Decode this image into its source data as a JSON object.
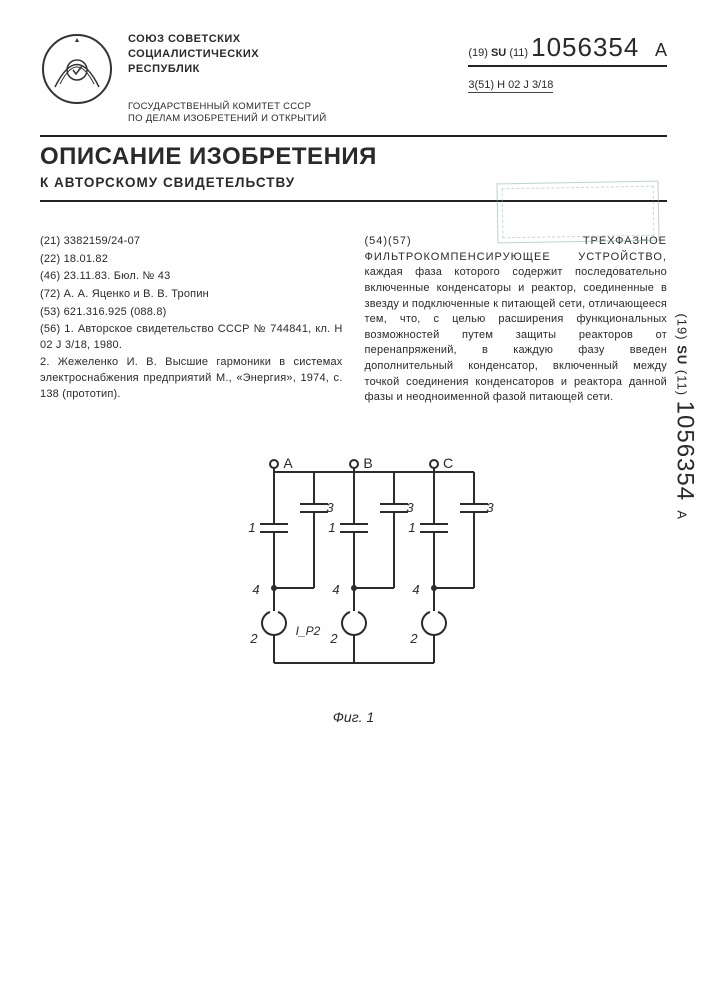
{
  "header": {
    "issuer_line1": "СОЮЗ СОВЕТСКИХ",
    "issuer_line2": "СОЦИАЛИСТИЧЕСКИХ",
    "issuer_line3": "РЕСПУБЛИК",
    "committee_line1": "ГОСУДАРСТВЕННЫЙ КОМИТЕТ СССР",
    "committee_line2": "ПО ДЕЛАМ ИЗОБРЕТЕНИЙ И ОТКРЫТИЙ",
    "country_prefix": "(19)",
    "country": "SU",
    "num_prefix": "(11)",
    "pub_number": "1056354",
    "kind": "A",
    "ipc_prefix": "3(51)",
    "ipc": "H 02 J 3/18"
  },
  "titles": {
    "main": "ОПИСАНИЕ ИЗОБРЕТЕНИЯ",
    "sub": "К АВТОРСКОМУ СВИДЕТЕЛЬСТВУ"
  },
  "left_col": {
    "l1": "(21) 3382159/24-07",
    "l2": "(22) 18.01.82",
    "l3": "(46) 23.11.83. Бюл. № 43",
    "l4": "(72) А. А. Яценко и В. В. Тропин",
    "l5": "(53) 621.316.925 (088.8)",
    "l6": "(56) 1. Авторское свидетельство СССР № 744841, кл. H 02 J 3/18, 1980.",
    "l7": "2. Жежеленко И. В. Высшие гармоники в системах электроснабжения предприятий М., «Энергия», 1974, с. 138 (прототип)."
  },
  "right_col": {
    "title": "(54)(57) ТРЕХФАЗНОЕ ФИЛЬТРОКОМПЕНСИРУЮЩЕЕ УСТРОЙСТВО,",
    "body": "каждая фаза которого содержит последовательно включенные конденсаторы и реактор, соединенные в звезду и подключенные к питающей сети, отличающееся тем, что, с целью расширения функциональных возможностей путем защиты реакторов от перенапряжений, в каждую фазу введен дополнительный конденсатор, включенный между точкой соединения конденсаторов и реактора данной фазы и неодноименной фазой питающей сети."
  },
  "figure": {
    "caption": "Фиг. 1",
    "phases": [
      "A",
      "B",
      "C"
    ],
    "labels": {
      "upper_cap": "1",
      "reactor": "2",
      "extra_cap": "3",
      "node": "4"
    },
    "current_label": "I_P2",
    "stroke": "#2b2b2b",
    "stroke_width": 2,
    "text_size": 14
  },
  "side_strip": {
    "prefix": "(19)",
    "cc": "SU",
    "num_prefix": "(11)",
    "num": "1056354",
    "kind": "A"
  }
}
